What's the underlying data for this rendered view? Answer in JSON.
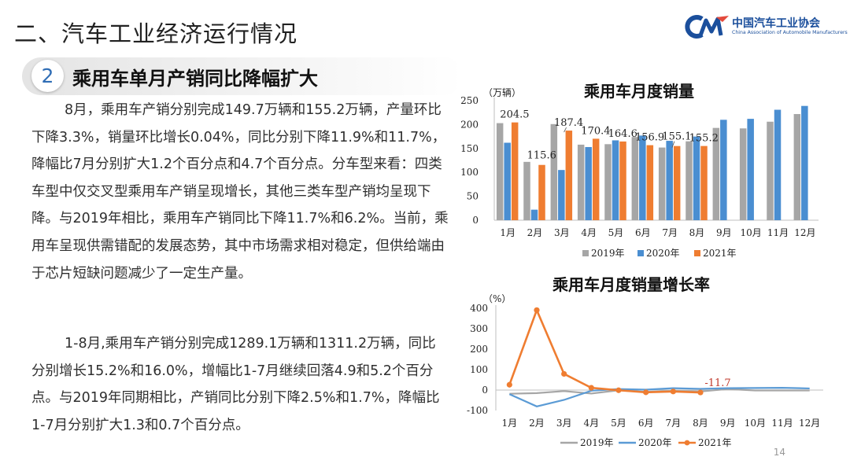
{
  "header": {
    "title": "二、汽车工业经济运行情况",
    "logo_cn": "中国汽车工业协会",
    "logo_en": "China Association of Automobile Manufacturers",
    "logo_mark": "CM"
  },
  "section": {
    "number": "2",
    "title": "乘用车单月产销同比降幅扩大"
  },
  "paragraphs": [
    "8月，乘用车产销分别完成149.7万辆和155.2万辆，产量环比下降3.3%，销量环比增长0.04%，同比分别下降11.9%和11.7%，降幅比7月分别扩大1.2个百分点和4.7个百分点。分车型来看：四类车型中仅交叉型乘用车产销呈现增长，其他三类车型产销均呈现下降。与2019年相比，乘用车产销同比下降11.7%和6.2%。当前，乘用车呈现供需错配的发展态势，其中市场需求相对稳定，但供给端由于芯片短缺问题减少了一定生产量。",
    "1-8月,乘用车产销分别完成1289.1万辆和1311.2万辆，同比分别增长15.2%和16.0%，增幅比1-7月继续回落4.9和5.2个百分点。与2019年同期相比，产销同比分别下降2.5%和1.7%，降幅比1-7月分别扩大1.3和0.7个百分点。"
  ],
  "page_number": "14",
  "chart_data": [
    {
      "type": "bar",
      "title": "乘用车月度销量",
      "ylabel": "（万辆）",
      "ylim": [
        0,
        250
      ],
      "yticks": [
        0,
        50,
        100,
        150,
        200,
        250
      ],
      "categories": [
        "1月",
        "2月",
        "3月",
        "4月",
        "5月",
        "6月",
        "7月",
        "8月",
        "9月",
        "10月",
        "11月",
        "12月"
      ],
      "series": [
        {
          "name": "2019年",
          "color": "#a6a6a6",
          "values": [
            203,
            122,
            201,
            158,
            159,
            174,
            152,
            165,
            193,
            192,
            206,
            222
          ]
        },
        {
          "name": "2020年",
          "color": "#4a8ed1",
          "values": [
            162,
            22,
            105,
            153,
            167,
            177,
            166,
            175,
            210,
            212,
            231,
            239
          ]
        },
        {
          "name": "2021年",
          "color": "#ef7d31",
          "values": [
            204.5,
            115.6,
            187.4,
            170.4,
            164.6,
            156.9,
            155.1,
            155.2,
            null,
            null,
            null,
            null
          ]
        }
      ],
      "data_labels": [
        "204.5",
        "115.6",
        "187.4",
        "170.4",
        "164.6",
        "156.9",
        "155.1",
        "155.2"
      ],
      "legend": "bottom"
    },
    {
      "type": "line",
      "title": "乘用车月度销量增长率",
      "ylabel": "（%）",
      "ylim": [
        -100,
        400
      ],
      "yticks": [
        -100,
        0,
        100,
        200,
        300,
        400
      ],
      "categories": [
        "1月",
        "2月",
        "3月",
        "4月",
        "5月",
        "6月",
        "7月",
        "8月",
        "9月",
        "10月",
        "11月",
        "12月"
      ],
      "series": [
        {
          "name": "2019年",
          "color": "#a6a6a6",
          "values": [
            -18,
            -15,
            -5,
            -17,
            -1,
            -9,
            -4,
            -7,
            5,
            -2,
            -2,
            -2
          ]
        },
        {
          "name": "2020年",
          "color": "#5b9bd5",
          "values": [
            -20,
            -80,
            -48,
            -3,
            5,
            2,
            9,
            6,
            9,
            10,
            11,
            8
          ]
        },
        {
          "name": "2021年",
          "color": "#ef7d31",
          "values": [
            26,
            391,
            79,
            11,
            -1,
            -11,
            -7,
            -11.7,
            null,
            null,
            null,
            null
          ]
        }
      ],
      "data_labels": [
        "-11.7"
      ],
      "legend": "bottom"
    }
  ]
}
